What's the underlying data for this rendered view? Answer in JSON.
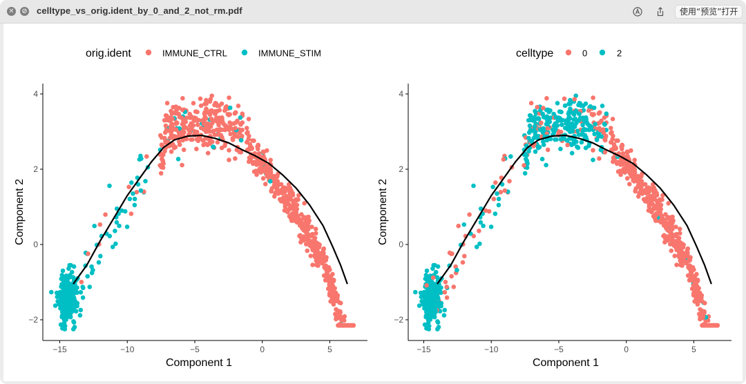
{
  "window": {
    "title": "celltype_vs_orig.ident_by_0_and_2_not_rm.pdf",
    "close_glyph": "✕",
    "minimize_glyph": "⊘",
    "markup_icon": "markup-icon",
    "share_icon": "share-icon",
    "open_with_label": "使用“预览”打开"
  },
  "colors": {
    "red": "#F8766D",
    "teal": "#00BFC4",
    "trajectory": "#000000",
    "axis": "#000000",
    "tick_text": "#4d4d4d"
  },
  "chart_data": [
    {
      "type": "scatter",
      "xlabel": "Component 1",
      "ylabel": "Component 2",
      "xlim": [
        -16.5,
        7.8
      ],
      "ylim": [
        -2.6,
        4.2
      ],
      "xticks": [
        -15,
        -10,
        -5,
        0,
        5
      ],
      "yticks": [
        -2,
        0,
        2,
        4
      ],
      "xtick_labels": [
        "−15",
        "−10",
        "−5",
        "0",
        "5"
      ],
      "ytick_labels": [
        "−2",
        "0",
        "2",
        "4"
      ],
      "grid": false,
      "legend_position": "top",
      "legend_title": "orig.ident",
      "series": [
        {
          "name": "IMMUNE_CTRL",
          "color": "#F8766D"
        },
        {
          "name": "IMMUNE_STIM",
          "color": "#00BFC4"
        }
      ],
      "trajectory": [
        [
          -14.0,
          -1.05
        ],
        [
          -13.0,
          -0.55
        ],
        [
          -12.0,
          0.1
        ],
        [
          -11.0,
          0.7
        ],
        [
          -10.0,
          1.3
        ],
        [
          -9.0,
          1.8
        ],
        [
          -8.2,
          2.2
        ],
        [
          -7.3,
          2.58
        ],
        [
          -6.5,
          2.78
        ],
        [
          -5.5,
          2.88
        ],
        [
          -4.5,
          2.9
        ],
        [
          -3.5,
          2.82
        ],
        [
          -2.5,
          2.7
        ],
        [
          -1.5,
          2.52
        ],
        [
          -0.5,
          2.35
        ],
        [
          0.5,
          2.15
        ],
        [
          1.5,
          1.85
        ],
        [
          2.5,
          1.5
        ],
        [
          3.5,
          1.05
        ],
        [
          4.5,
          0.5
        ],
        [
          5.2,
          -0.05
        ],
        [
          5.8,
          -0.55
        ],
        [
          6.3,
          -1.05
        ]
      ]
    },
    {
      "type": "scatter",
      "xlabel": "Component 1",
      "ylabel": "Component 2",
      "xlim": [
        -16.5,
        7.8
      ],
      "ylim": [
        -2.6,
        4.2
      ],
      "xticks": [
        -15,
        -10,
        -5,
        0,
        5
      ],
      "yticks": [
        -2,
        0,
        2,
        4
      ],
      "xtick_labels": [
        "−15",
        "−10",
        "−5",
        "0",
        "5"
      ],
      "ytick_labels": [
        "−2",
        "0",
        "2",
        "4"
      ],
      "grid": false,
      "legend_position": "top",
      "legend_title": "celltype",
      "series": [
        {
          "name": "0",
          "color": "#F8766D"
        },
        {
          "name": "2",
          "color": "#00BFC4"
        }
      ],
      "trajectory": [
        [
          -14.0,
          -1.05
        ],
        [
          -13.0,
          -0.55
        ],
        [
          -12.0,
          0.1
        ],
        [
          -11.0,
          0.7
        ],
        [
          -10.0,
          1.3
        ],
        [
          -9.0,
          1.8
        ],
        [
          -8.2,
          2.2
        ],
        [
          -7.3,
          2.58
        ],
        [
          -6.5,
          2.78
        ],
        [
          -5.5,
          2.88
        ],
        [
          -4.5,
          2.9
        ],
        [
          -3.5,
          2.82
        ],
        [
          -2.5,
          2.7
        ],
        [
          -1.5,
          2.52
        ],
        [
          -0.5,
          2.35
        ],
        [
          0.5,
          2.15
        ],
        [
          1.5,
          1.85
        ],
        [
          2.5,
          1.5
        ],
        [
          3.5,
          1.05
        ],
        [
          4.5,
          0.5
        ],
        [
          5.2,
          -0.05
        ],
        [
          5.8,
          -0.55
        ],
        [
          6.3,
          -1.05
        ]
      ]
    }
  ]
}
